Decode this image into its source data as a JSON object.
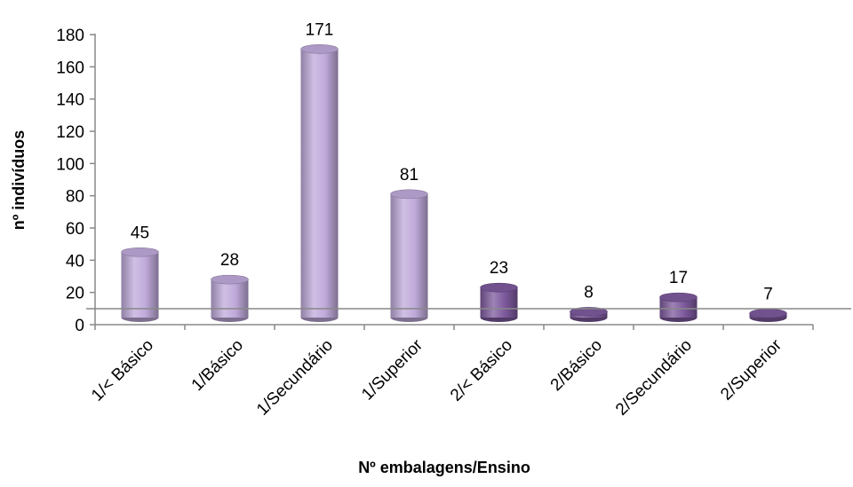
{
  "chart_data": {
    "type": "bar",
    "title": "",
    "xlabel": "Nº embalagens/Ensino",
    "ylabel": "nº indivíduos",
    "ylim": [
      0,
      180
    ],
    "yticks": [
      0,
      20,
      40,
      60,
      80,
      100,
      120,
      140,
      160,
      180
    ],
    "categories": [
      "1/< Básico",
      "1/Básico",
      "1/Secundário",
      "1/Superior",
      "2/< Básico",
      "2/Básico",
      "2/Secundário",
      "2/Superior"
    ],
    "values": [
      45,
      28,
      171,
      81,
      23,
      8,
      17,
      7
    ],
    "data_labels": [
      "45",
      "28",
      "171",
      "81",
      "23",
      "8",
      "17",
      "7"
    ],
    "bar_colors": [
      "#c0aadb",
      "#c0aadb",
      "#c0aadb",
      "#c0aadb",
      "#7e5a9e",
      "#7e5a9e",
      "#7e5a9e",
      "#7e5a9e"
    ],
    "bar_style": "3d-cylinder",
    "legend": "none",
    "grid": false
  }
}
